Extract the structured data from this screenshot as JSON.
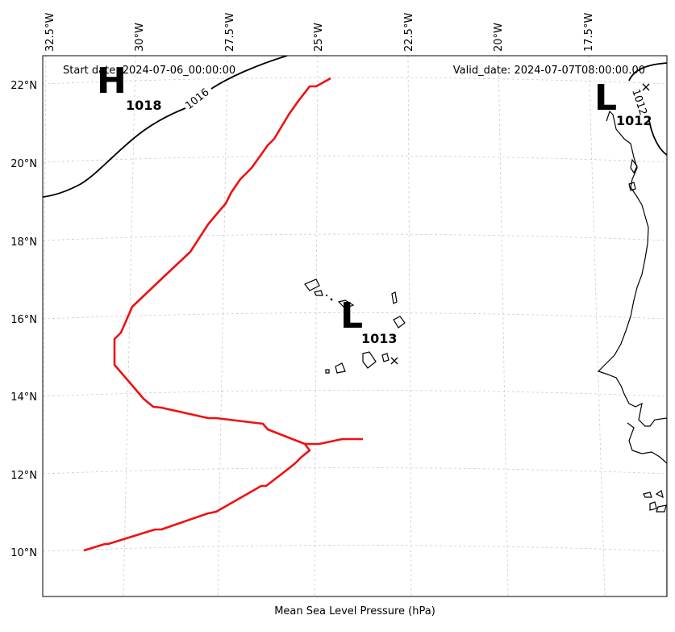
{
  "header": {
    "start_date": "Start date: 2024-07-06_00:00:00",
    "valid_date": "Valid_date: 2024-07-07T08:00:00.00"
  },
  "footer": {
    "xlabel": "Mean Sea Level Pressure (hPa)"
  },
  "axes": {
    "lon_ticks": [
      "32.5°W",
      "30°W",
      "27.5°W",
      "25°W",
      "22.5°W",
      "20°W",
      "17.5°W"
    ],
    "lat_ticks": [
      "22°N",
      "20°N",
      "18°N",
      "16°N",
      "14°N",
      "12°N",
      "10°N"
    ]
  },
  "pressure_centers": [
    {
      "type": "H",
      "value": "1018"
    },
    {
      "type": "L",
      "value": "1013"
    },
    {
      "type": "L",
      "value": "1012"
    }
  ],
  "contours": [
    {
      "label": "1016"
    },
    {
      "label": "1012"
    }
  ],
  "colors": {
    "track": "#ee1111",
    "coast": "#000000",
    "grid": "#cccccc",
    "contour": "#000000"
  }
}
